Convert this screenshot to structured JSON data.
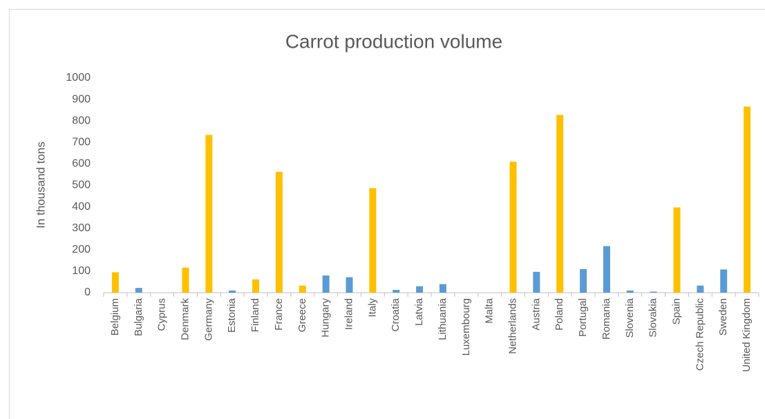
{
  "chart_data": {
    "type": "bar",
    "title": "Carrot production volume",
    "y_label": "In thousand tons",
    "categories": [
      "Belgium",
      "Bulgaria",
      "Cyprus",
      "Denmark",
      "Germany",
      "Estonia",
      "Finland",
      "France",
      "Greece",
      "Hungary",
      "Ireland",
      "Italy",
      "Croatia",
      "Latvia",
      "Lithuania",
      "Luxembourg",
      "Malta",
      "Netherlands",
      "Austria",
      "Poland",
      "Portugal",
      "Romania",
      "Slovenia",
      "Slovakia",
      "Spain",
      "Czech Republic",
      "Sweden",
      "United Kingdom"
    ],
    "values": [
      95,
      22,
      0,
      117,
      735,
      10,
      62,
      563,
      33,
      80,
      72,
      487,
      13,
      30,
      40,
      0,
      0,
      610,
      97,
      828,
      110,
      217,
      10,
      5,
      397,
      33,
      108,
      867
    ],
    "colors": [
      "#ffc000",
      "#5b9bd5",
      "#5b9bd5",
      "#ffc000",
      "#ffc000",
      "#5b9bd5",
      "#ffc000",
      "#ffc000",
      "#ffc000",
      "#5b9bd5",
      "#5b9bd5",
      "#ffc000",
      "#5b9bd5",
      "#5b9bd5",
      "#5b9bd5",
      "#5b9bd5",
      "#5b9bd5",
      "#ffc000",
      "#5b9bd5",
      "#ffc000",
      "#5b9bd5",
      "#5b9bd5",
      "#5b9bd5",
      "#5b9bd5",
      "#ffc000",
      "#5b9bd5",
      "#5b9bd5",
      "#ffc000"
    ],
    "ylim": [
      0,
      1000
    ],
    "yticks": [
      0,
      100,
      200,
      300,
      400,
      500,
      600,
      700,
      800,
      900,
      1000
    ],
    "grid": false
  }
}
